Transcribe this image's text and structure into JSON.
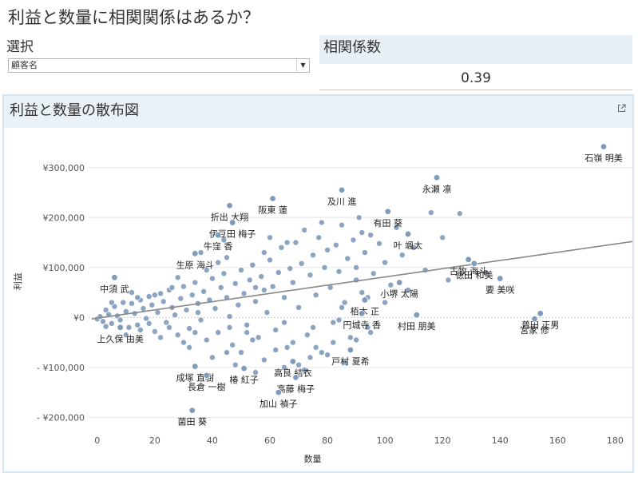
{
  "page": {
    "title": "利益と数量に相関関係はあるか？"
  },
  "filter": {
    "label": "選択",
    "selected": "顧客名"
  },
  "correlation": {
    "header": "相関係数",
    "value": "0.39"
  },
  "chart_panel": {
    "title": "利益と数量の散布図"
  },
  "icons": {
    "popout": "external-link-icon",
    "dropdown": "chevron-down-icon"
  },
  "colors": {
    "point_fill": "#7f9bbb",
    "point_stroke": "#ffffff",
    "trend_line": "#888888",
    "panel_header_bg": "#eaf2f7",
    "panel_border": "#d6e6f0"
  },
  "chart_data": {
    "type": "scatter",
    "title": "利益と数量の散布図",
    "xlabel": "数量",
    "ylabel": "利益",
    "xlim": [
      -3,
      186
    ],
    "ylim": [
      -225000,
      370000
    ],
    "x_ticks": [
      0,
      20,
      40,
      60,
      80,
      100,
      120,
      140,
      160,
      180
    ],
    "x_tick_labels": [
      "0",
      "20",
      "40",
      "60",
      "80",
      "100",
      "120",
      "140",
      "160",
      "180"
    ],
    "y_ticks": [
      300000,
      200000,
      100000,
      0,
      -100000,
      -200000
    ],
    "y_tick_labels": [
      "¥300,000",
      "¥200,000",
      "¥100,000",
      "¥0",
      "- ¥100,000",
      "- ¥200,000"
    ],
    "grid": "horizontal",
    "trend_line": {
      "x": [
        -2,
        186
      ],
      "y": [
        -3000,
        152000
      ]
    },
    "labeled_points": [
      {
        "name": "石嶺 明美",
        "x": 176,
        "y": 342000
      },
      {
        "name": "永瀬 凛",
        "x": 118,
        "y": 280000
      },
      {
        "name": "及川 進",
        "x": 85,
        "y": 255000
      },
      {
        "name": "阪東 蓮",
        "x": 61,
        "y": 238000
      },
      {
        "name": "折出 大翔",
        "x": 46,
        "y": 224000
      },
      {
        "name": "有田 葵",
        "x": 101,
        "y": 212000
      },
      {
        "name": "伊豆田 梅子",
        "x": 47,
        "y": 190000
      },
      {
        "name": "牛窪 香",
        "x": 42,
        "y": 165000
      },
      {
        "name": "叶 颯太",
        "x": 108,
        "y": 167000
      },
      {
        "name": "生原 海斗",
        "x": 34,
        "y": 128000
      },
      {
        "name": "古牧 海斗",
        "x": 129,
        "y": 116000
      },
      {
        "name": "中須 武",
        "x": 6,
        "y": 80000
      },
      {
        "name": "徳田 和美",
        "x": 131,
        "y": 108000
      },
      {
        "name": "要 美咲",
        "x": 140,
        "y": 78000
      },
      {
        "name": "小堺 太陽",
        "x": 105,
        "y": 70000
      },
      {
        "name": "栢木 正",
        "x": 93,
        "y": 35000
      },
      {
        "name": "円城寺 香",
        "x": 92,
        "y": 8000
      },
      {
        "name": "村田 朋美",
        "x": 111,
        "y": 5000
      },
      {
        "name": "普田 正男",
        "x": 154,
        "y": 8000
      },
      {
        "name": "宮家 修",
        "x": 152,
        "y": -3000
      },
      {
        "name": "上久保 由美",
        "x": 8,
        "y": -20000
      },
      {
        "name": "成塚 直樹",
        "x": 34,
        "y": -98000
      },
      {
        "name": "高良 結衣",
        "x": 68,
        "y": -88000
      },
      {
        "name": "戸村 夏希",
        "x": 88,
        "y": -65000
      },
      {
        "name": "椿 紅子",
        "x": 51,
        "y": -102000
      },
      {
        "name": "高藤 梅子",
        "x": 69,
        "y": -120000
      },
      {
        "name": "長倉 一樹",
        "x": 38,
        "y": -116000
      },
      {
        "name": "菌田 葵",
        "x": 33,
        "y": -186000
      },
      {
        "name": "加山 禎子",
        "x": 63,
        "y": -150000
      }
    ],
    "background_points": [
      [
        0,
        -3000
      ],
      [
        1,
        2000
      ],
      [
        2,
        -8000
      ],
      [
        3,
        15000
      ],
      [
        4,
        6000
      ],
      [
        5,
        -12000
      ],
      [
        6,
        22000
      ],
      [
        7,
        3000
      ],
      [
        8,
        -5000
      ],
      [
        9,
        30000
      ],
      [
        10,
        12000
      ],
      [
        11,
        -20000
      ],
      [
        12,
        28000
      ],
      [
        13,
        8000
      ],
      [
        14,
        -15000
      ],
      [
        15,
        35000
      ],
      [
        16,
        18000
      ],
      [
        17,
        -2000
      ],
      [
        18,
        42000
      ],
      [
        19,
        25000
      ],
      [
        20,
        -28000
      ],
      [
        21,
        10000
      ],
      [
        22,
        48000
      ],
      [
        23,
        32000
      ],
      [
        24,
        -10000
      ],
      [
        25,
        55000
      ],
      [
        26,
        20000
      ],
      [
        27,
        5000
      ],
      [
        28,
        -35000
      ],
      [
        29,
        38000
      ],
      [
        30,
        62000
      ],
      [
        31,
        15000
      ],
      [
        32,
        -22000
      ],
      [
        33,
        45000
      ],
      [
        34,
        70000
      ],
      [
        35,
        28000
      ],
      [
        36,
        -5000
      ],
      [
        37,
        52000
      ],
      [
        38,
        -45000
      ],
      [
        39,
        35000
      ],
      [
        40,
        78000
      ],
      [
        41,
        18000
      ],
      [
        42,
        -30000
      ],
      [
        43,
        60000
      ],
      [
        44,
        88000
      ],
      [
        45,
        40000
      ],
      [
        46,
        2000
      ],
      [
        47,
        -55000
      ],
      [
        48,
        68000
      ],
      [
        49,
        25000
      ],
      [
        50,
        95000
      ],
      [
        51,
        48000
      ],
      [
        52,
        -15000
      ],
      [
        53,
        75000
      ],
      [
        54,
        105000
      ],
      [
        55,
        32000
      ],
      [
        56,
        -40000
      ],
      [
        57,
        82000
      ],
      [
        58,
        55000
      ],
      [
        59,
        10000
      ],
      [
        60,
        115000
      ],
      [
        61,
        62000
      ],
      [
        62,
        -25000
      ],
      [
        63,
        90000
      ],
      [
        64,
        140000
      ],
      [
        65,
        40000
      ],
      [
        66,
        -60000
      ],
      [
        67,
        98000
      ],
      [
        68,
        70000
      ],
      [
        69,
        150000
      ],
      [
        70,
        20000
      ],
      [
        71,
        108000
      ],
      [
        72,
        175000
      ],
      [
        73,
        -35000
      ],
      [
        74,
        85000
      ],
      [
        75,
        125000
      ],
      [
        76,
        45000
      ],
      [
        77,
        160000
      ],
      [
        78,
        -70000
      ],
      [
        79,
        100000
      ],
      [
        80,
        135000
      ],
      [
        81,
        60000
      ],
      [
        82,
        -10000
      ],
      [
        83,
        145000
      ],
      [
        84,
        92000
      ],
      [
        85,
        185000
      ],
      [
        86,
        30000
      ],
      [
        87,
        118000
      ],
      [
        88,
        -40000
      ],
      [
        89,
        155000
      ],
      [
        90,
        75000
      ],
      [
        91,
        200000
      ],
      [
        92,
        50000
      ],
      [
        93,
        130000
      ],
      [
        94,
        -20000
      ],
      [
        95,
        165000
      ],
      [
        96,
        88000
      ],
      [
        98,
        148000
      ],
      [
        100,
        110000
      ],
      [
        102,
        65000
      ],
      [
        104,
        180000
      ],
      [
        106,
        125000
      ],
      [
        110,
        140000
      ],
      [
        114,
        95000
      ],
      [
        116,
        210000
      ],
      [
        120,
        160000
      ],
      [
        122,
        75000
      ],
      [
        126,
        208000
      ],
      [
        135,
        90000
      ],
      [
        10,
        -35000
      ],
      [
        14,
        40000
      ],
      [
        18,
        -12000
      ],
      [
        22,
        -40000
      ],
      [
        26,
        60000
      ],
      [
        30,
        -50000
      ],
      [
        34,
        -30000
      ],
      [
        38,
        95000
      ],
      [
        42,
        110000
      ],
      [
        46,
        -20000
      ],
      [
        50,
        -70000
      ],
      [
        54,
        -45000
      ],
      [
        58,
        130000
      ],
      [
        62,
        -65000
      ],
      [
        66,
        150000
      ],
      [
        70,
        -95000
      ],
      [
        74,
        -80000
      ],
      [
        78,
        190000
      ],
      [
        82,
        -50000
      ],
      [
        86,
        -90000
      ],
      [
        90,
        100000
      ],
      [
        94,
        40000
      ],
      [
        5,
        30000
      ],
      [
        15,
        -25000
      ],
      [
        25,
        -20000
      ],
      [
        35,
        10000
      ],
      [
        45,
        120000
      ],
      [
        55,
        60000
      ],
      [
        65,
        -10000
      ],
      [
        75,
        -20000
      ],
      [
        85,
        20000
      ],
      [
        95,
        -30000
      ],
      [
        3,
        -18000
      ],
      [
        12,
        50000
      ],
      [
        20,
        45000
      ],
      [
        28,
        80000
      ],
      [
        36,
        130000
      ],
      [
        44,
        155000
      ],
      [
        52,
        -30000
      ],
      [
        60,
        160000
      ],
      [
        68,
        -50000
      ],
      [
        76,
        -60000
      ],
      [
        84,
        -5000
      ],
      [
        92,
        170000
      ],
      [
        100,
        30000
      ],
      [
        108,
        55000
      ],
      [
        45,
        -70000
      ],
      [
        55,
        -110000
      ],
      [
        65,
        -100000
      ],
      [
        32,
        -60000
      ],
      [
        40,
        -80000
      ],
      [
        48,
        -95000
      ],
      [
        58,
        -85000
      ],
      [
        72,
        -105000
      ],
      [
        80,
        -75000
      ],
      [
        90,
        -45000
      ]
    ]
  }
}
